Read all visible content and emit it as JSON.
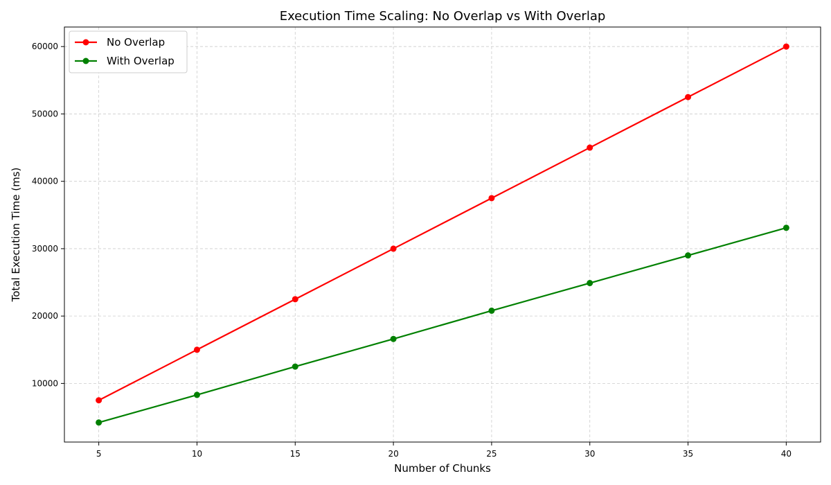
{
  "chart_data": {
    "type": "line",
    "title": "Execution Time Scaling: No Overlap vs With Overlap",
    "xlabel": "Number of Chunks",
    "ylabel": "Total Execution Time (ms)",
    "x": [
      5,
      10,
      15,
      20,
      25,
      30,
      35,
      40
    ],
    "xlim": [
      3.25,
      41.75
    ],
    "ylim": [
      1300,
      62900
    ],
    "xticks": [
      5,
      10,
      15,
      20,
      25,
      30,
      35,
      40
    ],
    "yticks": [
      10000,
      20000,
      30000,
      40000,
      50000,
      60000
    ],
    "grid": true,
    "legend_position": "top-left",
    "series": [
      {
        "name": "No Overlap",
        "color": "#ff0000",
        "values": [
          7500,
          15000,
          22500,
          30000,
          37500,
          45000,
          52500,
          60000
        ]
      },
      {
        "name": "With Overlap",
        "color": "#008000",
        "values": [
          4200,
          8300,
          12500,
          16600,
          20800,
          24900,
          29000,
          33100
        ]
      }
    ]
  }
}
